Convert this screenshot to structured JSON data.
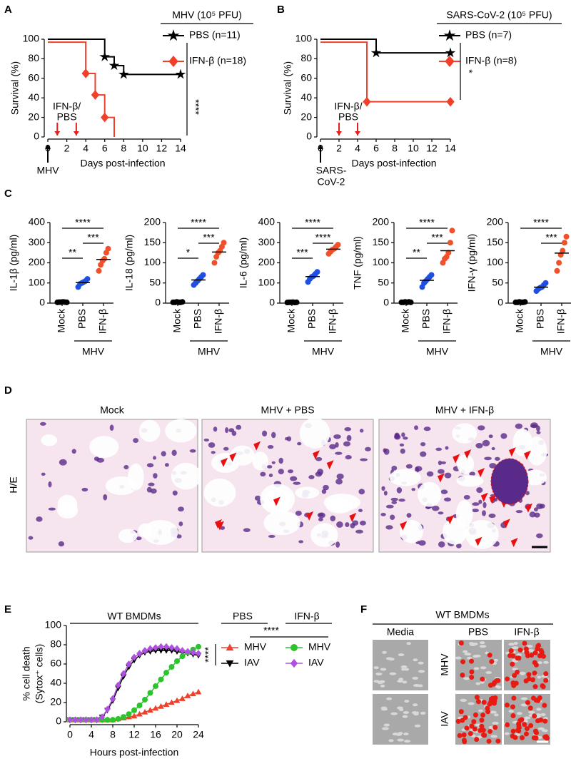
{
  "panel_labels": [
    "A",
    "B",
    "C",
    "D",
    "E",
    "F"
  ],
  "chart_data": [
    {
      "type": "survival",
      "legend_title": "MHV (10⁵ PFU)",
      "ylabel": "Survival (%)",
      "xlabel": "Days post-infection",
      "xlim": [
        0,
        14
      ],
      "xticks": [
        0,
        2,
        4,
        6,
        8,
        10,
        12,
        14
      ],
      "ylim": [
        0,
        100
      ],
      "yticks": [
        0,
        20,
        40,
        60,
        80,
        100
      ],
      "treatment_label": [
        "IFN-β/",
        "PBS"
      ],
      "treatment_days": [
        1,
        3
      ],
      "infection_label": [
        "MHV"
      ],
      "significance": "****",
      "series": [
        {
          "name": "PBS (n=11)",
          "color": "#000000",
          "marker": "star",
          "x": [
            0,
            6,
            7,
            8,
            14
          ],
          "values": [
            100,
            82,
            73,
            64,
            64
          ]
        },
        {
          "name": "IFN-β (n=18)",
          "color": "#f0402a",
          "marker": "diamond",
          "x": [
            0,
            4,
            5,
            6,
            7
          ],
          "values": [
            97,
            65,
            43,
            20,
            0
          ]
        }
      ]
    },
    {
      "type": "survival",
      "legend_title": "SARS-CoV-2 (10⁵ PFU)",
      "ylabel": "Survival (%)",
      "xlabel": "Days post-infection",
      "xlim": [
        0,
        14
      ],
      "xticks": [
        0,
        2,
        4,
        6,
        8,
        10,
        12,
        14
      ],
      "ylim": [
        0,
        100
      ],
      "yticks": [
        0,
        20,
        40,
        60,
        80,
        100
      ],
      "treatment_label": [
        "IFN-β/",
        "PBS"
      ],
      "treatment_days": [
        2,
        4
      ],
      "infection_label": [
        "SARS-",
        "CoV-2"
      ],
      "significance": "*",
      "series": [
        {
          "name": "PBS (n=7)",
          "color": "#000000",
          "marker": "star",
          "x": [
            0,
            6,
            14
          ],
          "values": [
            100,
            86,
            86
          ]
        },
        {
          "name": "IFN-β (n=8)",
          "color": "#f0402a",
          "marker": "diamond",
          "x": [
            0,
            5,
            14
          ],
          "values": [
            97,
            36,
            36
          ]
        }
      ]
    },
    {
      "type": "dot",
      "ylabel": "IL-1β (pg/ml)",
      "categories": [
        "Mock",
        "PBS",
        "IFN-β"
      ],
      "group_label": "MHV",
      "colors": [
        "#000000",
        "#1f4fe0",
        "#f0502a"
      ],
      "ylim": [
        0,
        400
      ],
      "yticks": [
        0,
        100,
        200,
        300,
        400
      ],
      "values": [
        [
          4,
          5,
          5,
          6,
          5,
          4
        ],
        [
          80,
          95,
          100,
          105,
          110,
          120
        ],
        [
          160,
          190,
          210,
          220,
          250,
          270
        ]
      ],
      "comparisons": [
        {
          "from": "Mock",
          "to": "IFN-β",
          "label": "****"
        },
        {
          "from": "PBS",
          "to": "IFN-β",
          "label": "***"
        },
        {
          "from": "Mock",
          "to": "PBS",
          "label": "**"
        }
      ]
    },
    {
      "type": "dot",
      "ylabel": "IL-18 (pg/ml)",
      "categories": [
        "Mock",
        "PBS",
        "IFN-β"
      ],
      "group_label": "MHV",
      "colors": [
        "#000000",
        "#1f4fe0",
        "#f0502a"
      ],
      "ylim": [
        0,
        200
      ],
      "yticks": [
        0,
        50,
        100,
        150,
        200
      ],
      "values": [
        [
          2,
          2,
          3,
          2,
          2,
          3
        ],
        [
          45,
          50,
          55,
          60,
          65,
          70
        ],
        [
          100,
          115,
          125,
          130,
          140,
          150
        ]
      ],
      "comparisons": [
        {
          "from": "Mock",
          "to": "IFN-β",
          "label": "****"
        },
        {
          "from": "PBS",
          "to": "IFN-β",
          "label": "***"
        },
        {
          "from": "Mock",
          "to": "PBS",
          "label": "*"
        }
      ]
    },
    {
      "type": "dot",
      "ylabel": "IL-6 (pg/ml)",
      "categories": [
        "Mock",
        "PBS",
        "IFN-β"
      ],
      "group_label": "MHV",
      "colors": [
        "#000000",
        "#1f4fe0",
        "#f0502a"
      ],
      "ylim": [
        0,
        400
      ],
      "yticks": [
        0,
        100,
        200,
        300,
        400
      ],
      "values": [
        [
          3,
          4,
          4,
          5,
          3,
          4
        ],
        [
          105,
          120,
          130,
          135,
          145,
          155
        ],
        [
          245,
          255,
          265,
          270,
          280,
          290
        ]
      ],
      "comparisons": [
        {
          "from": "Mock",
          "to": "IFN-β",
          "label": "****"
        },
        {
          "from": "PBS",
          "to": "IFN-β",
          "label": "****"
        },
        {
          "from": "Mock",
          "to": "PBS",
          "label": "***"
        }
      ]
    },
    {
      "type": "dot",
      "ylabel": "TNF (pg/ml)",
      "categories": [
        "Mock",
        "PBS",
        "IFN-β"
      ],
      "group_label": "MHV",
      "colors": [
        "#000000",
        "#1f4fe0",
        "#f0502a"
      ],
      "ylim": [
        0,
        200
      ],
      "yticks": [
        0,
        50,
        100,
        150,
        200
      ],
      "values": [
        [
          2,
          2,
          3,
          2,
          3,
          2
        ],
        [
          40,
          50,
          55,
          60,
          65,
          70
        ],
        [
          100,
          110,
          115,
          125,
          150,
          180
        ]
      ],
      "comparisons": [
        {
          "from": "Mock",
          "to": "IFN-β",
          "label": "****"
        },
        {
          "from": "PBS",
          "to": "IFN-β",
          "label": "***"
        },
        {
          "from": "Mock",
          "to": "PBS",
          "label": "**"
        }
      ]
    },
    {
      "type": "dot",
      "ylabel": "IFN-γ (pg/ml)",
      "categories": [
        "Mock",
        "PBS",
        "IFN-β"
      ],
      "group_label": "MHV",
      "colors": [
        "#000000",
        "#1f4fe0",
        "#f0502a"
      ],
      "ylim": [
        0,
        200
      ],
      "yticks": [
        0,
        50,
        100,
        150,
        200
      ],
      "values": [
        [
          2,
          2,
          3,
          2,
          2,
          3
        ],
        [
          30,
          35,
          38,
          40,
          45,
          50
        ],
        [
          80,
          100,
          120,
          130,
          150,
          165
        ]
      ],
      "comparisons": [
        {
          "from": "Mock",
          "to": "IFN-β",
          "label": "****"
        },
        {
          "from": "PBS",
          "to": "IFN-β",
          "label": "***"
        }
      ]
    },
    {
      "type": "line",
      "title": "WT BMDMs",
      "ylabel": [
        "% cell death",
        "(Sytox⁺ cells)"
      ],
      "xlabel": "Hours post-infection",
      "xlim": [
        0,
        24
      ],
      "xticks": [
        0,
        4,
        8,
        12,
        16,
        20,
        24
      ],
      "ylim": [
        0,
        100
      ],
      "yticks": [
        0,
        20,
        40,
        60,
        80,
        100
      ],
      "x": [
        0,
        1,
        2,
        3,
        4,
        5,
        6,
        7,
        8,
        9,
        10,
        11,
        12,
        13,
        14,
        15,
        16,
        17,
        18,
        19,
        20,
        21,
        22,
        23,
        24
      ],
      "significance": [
        "****",
        "****"
      ],
      "legend_groups": [
        {
          "name": "PBS",
          "series": [
            {
              "name": "MHV",
              "color": "#f0402a",
              "marker": "triangle",
              "values": [
                2,
                2,
                2,
                2,
                2,
                2,
                2,
                2,
                2,
                3,
                4,
                5,
                6,
                8,
                10,
                12,
                14,
                16,
                18,
                20,
                22,
                24,
                27,
                29,
                31
              ]
            },
            {
              "name": "IAV",
              "color": "#000000",
              "marker": "triangle-down",
              "values": [
                2,
                2,
                2,
                2,
                2,
                2,
                5,
                12,
                22,
                35,
                47,
                57,
                64,
                69,
                72,
                73,
                74,
                74,
                74,
                74,
                73,
                72,
                71,
                70,
                69
              ]
            }
          ]
        },
        {
          "name": "IFN-β",
          "series": [
            {
              "name": "MHV",
              "color": "#2cc42c",
              "marker": "circle",
              "values": [
                2,
                2,
                2,
                2,
                2,
                2,
                2,
                2,
                2,
                3,
                5,
                8,
                12,
                17,
                23,
                30,
                37,
                44,
                51,
                57,
                63,
                68,
                72,
                75,
                78
              ]
            },
            {
              "name": "IAV",
              "color": "#b050e0",
              "marker": "diamond",
              "values": [
                2,
                2,
                2,
                2,
                2,
                2,
                5,
                13,
                24,
                38,
                50,
                60,
                67,
                71,
                74,
                76,
                77,
                78,
                78,
                77,
                76,
                74,
                73,
                72,
                71
              ]
            }
          ]
        }
      ]
    }
  ],
  "histology": {
    "row_label": "H/E",
    "panels": [
      "Mock",
      "MHV + PBS",
      "MHV + IFN-β"
    ]
  },
  "imaging": {
    "title": "WT BMDMs",
    "columns": [
      "Media",
      "PBS",
      "IFN-β"
    ],
    "rows": [
      "MHV",
      "IAV"
    ]
  }
}
